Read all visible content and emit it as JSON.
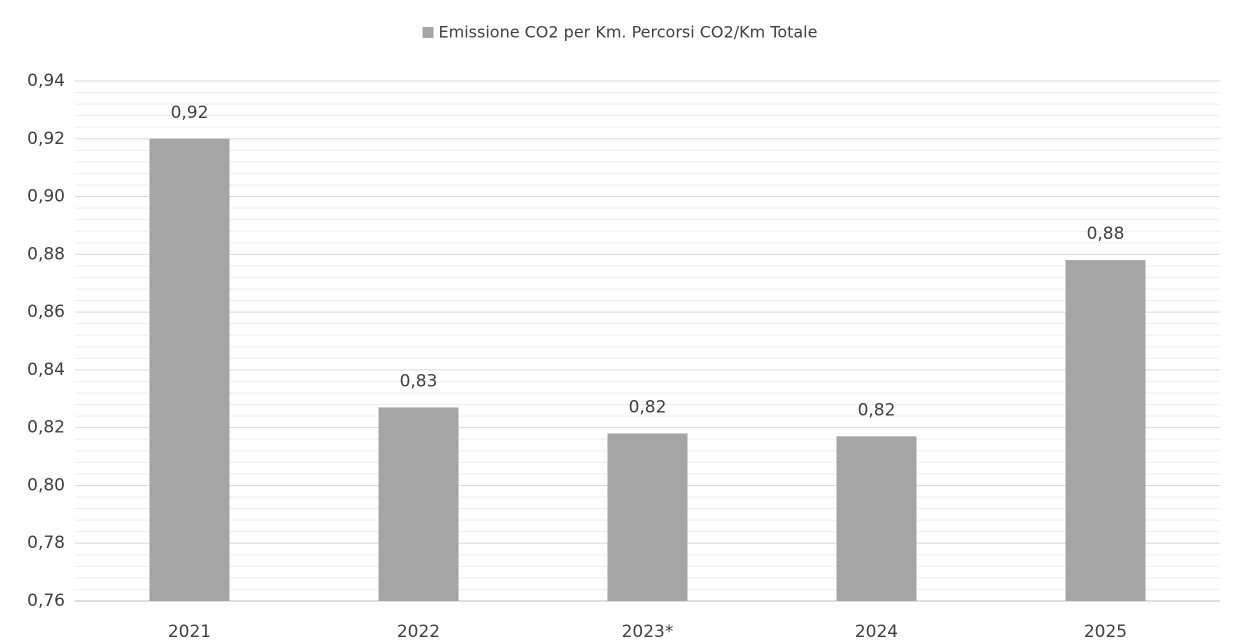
{
  "chart_data": {
    "type": "bar",
    "categories": [
      "2021",
      "2022",
      "2023*",
      "2024",
      "2025"
    ],
    "series": [
      {
        "name": "Emissione CO2 per Km. Percorsi CO2/Km Totale",
        "color": "#a5a5a5",
        "values": [
          0.92,
          0.827,
          0.818,
          0.817,
          0.878
        ],
        "value_labels": [
          "0,92",
          "0,83",
          "0,82",
          "0,82",
          "0,88"
        ]
      }
    ],
    "ylim": [
      0.76,
      0.94
    ],
    "yticks": [
      {
        "value": 0.76,
        "label": "0,76"
      },
      {
        "value": 0.78,
        "label": "0,78"
      },
      {
        "value": 0.8,
        "label": "0,80"
      },
      {
        "value": 0.82,
        "label": "0,82"
      },
      {
        "value": 0.84,
        "label": "0,84"
      },
      {
        "value": 0.86,
        "label": "0,86"
      },
      {
        "value": 0.88,
        "label": "0,88"
      },
      {
        "value": 0.9,
        "label": "0,90"
      },
      {
        "value": 0.92,
        "label": "0,92"
      },
      {
        "value": 0.94,
        "label": "0,94"
      }
    ],
    "grid": true,
    "minor_grid": true,
    "legend": "top"
  }
}
